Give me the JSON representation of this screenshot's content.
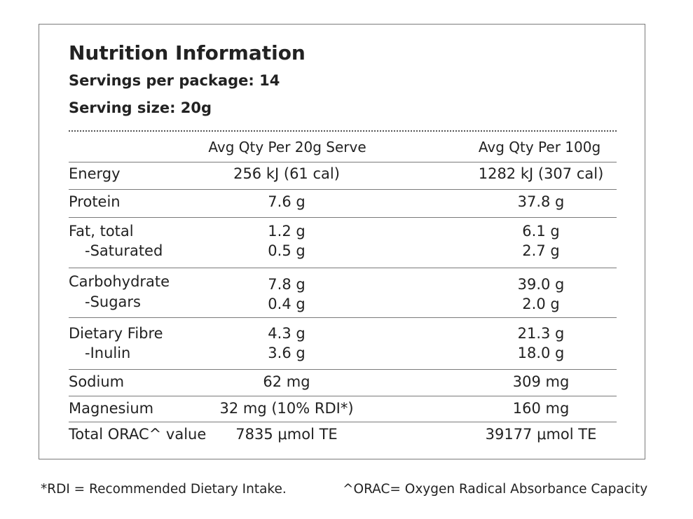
{
  "label": {
    "title": "Nutrition Information",
    "servings_per_package": "Servings per package: 14",
    "serving_size": "Serving size: 20g",
    "col1_header": "Avg Qty Per 20g Serve",
    "col2_header": "Avg Qty Per 100g",
    "rows": [
      {
        "label": "Energy",
        "serve": "256 kJ (61 cal)",
        "per100": "1282 kJ (307 cal)"
      },
      {
        "label": "Protein",
        "serve": "7.6 g",
        "per100": "37.8 g"
      },
      {
        "label": "Fat, total",
        "serve": "1.2 g",
        "per100": "6.1 g"
      },
      {
        "label": "-Saturated",
        "serve": "0.5 g",
        "per100": "2.7 g"
      },
      {
        "label": "Carbohydrate",
        "serve": "7.8 g",
        "per100": "39.0 g"
      },
      {
        "label": "-Sugars",
        "serve": "0.4 g",
        "per100": "2.0 g"
      },
      {
        "label": "Dietary Fibre",
        "serve": "4.3 g",
        "per100": "21.3 g"
      },
      {
        "label": "-Inulin",
        "serve": "3.6 g",
        "per100": "18.0 g"
      },
      {
        "label": "Sodium",
        "serve": "62 mg",
        "per100": "309 mg"
      },
      {
        "label": "Magnesium",
        "serve": "32 mg (10% RDI*)",
        "per100": "160 mg"
      },
      {
        "label": "Total ORAC^ value",
        "serve": "7835 μmol TE",
        "per100": "39177 μmol TE"
      }
    ]
  },
  "footnotes": {
    "rdi": "*RDI = Recommended Dietary Intake.",
    "orac": "^ORAC= Oxygen Radical Absorbance Capacity"
  }
}
